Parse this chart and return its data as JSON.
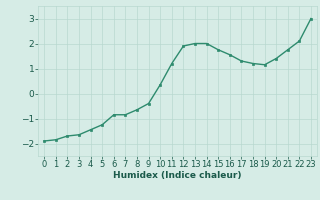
{
  "x": [
    0,
    1,
    2,
    3,
    4,
    5,
    6,
    7,
    8,
    9,
    10,
    11,
    12,
    13,
    14,
    15,
    16,
    17,
    18,
    19,
    20,
    21,
    22,
    23
  ],
  "y": [
    -1.9,
    -1.85,
    -1.7,
    -1.65,
    -1.45,
    -1.25,
    -0.85,
    -0.85,
    -0.65,
    -0.4,
    0.35,
    1.2,
    1.9,
    2.0,
    2.0,
    1.75,
    1.55,
    1.3,
    1.2,
    1.15,
    1.4,
    1.75,
    2.1,
    3.0
  ],
  "xlabel": "Humidex (Indice chaleur)",
  "xlim": [
    -0.5,
    23.5
  ],
  "ylim": [
    -2.5,
    3.5
  ],
  "yticks": [
    -2,
    -1,
    0,
    1,
    2,
    3
  ],
  "xticks": [
    0,
    1,
    2,
    3,
    4,
    5,
    6,
    7,
    8,
    9,
    10,
    11,
    12,
    13,
    14,
    15,
    16,
    17,
    18,
    19,
    20,
    21,
    22,
    23
  ],
  "line_color": "#2e8b6e",
  "marker_color": "#2e8b6e",
  "bg_color": "#d6ece6",
  "grid_color": "#b8d8d0",
  "font_color": "#1a5a4a",
  "xlabel_fontsize": 6.5,
  "tick_fontsize": 6,
  "ytick_fontsize": 6.5
}
